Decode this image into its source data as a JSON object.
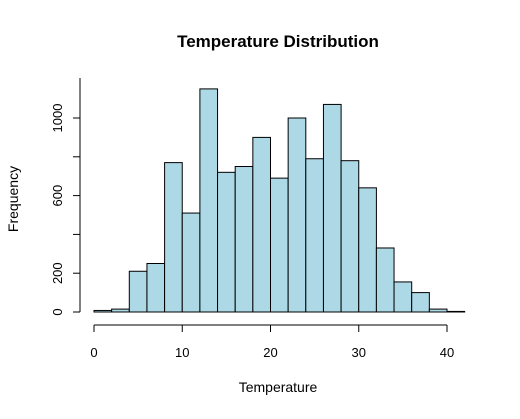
{
  "chart_data": {
    "type": "bar",
    "title": "Temperature Distribution",
    "xlabel": "Temperature",
    "ylabel": "Frequency",
    "bin_width": 2,
    "bins": [
      {
        "x0": 0,
        "x1": 2,
        "count": 8
      },
      {
        "x0": 2,
        "x1": 4,
        "count": 15
      },
      {
        "x0": 4,
        "x1": 6,
        "count": 210
      },
      {
        "x0": 6,
        "x1": 8,
        "count": 250
      },
      {
        "x0": 8,
        "x1": 10,
        "count": 770
      },
      {
        "x0": 10,
        "x1": 12,
        "count": 510
      },
      {
        "x0": 12,
        "x1": 14,
        "count": 1150
      },
      {
        "x0": 14,
        "x1": 16,
        "count": 720
      },
      {
        "x0": 16,
        "x1": 18,
        "count": 750
      },
      {
        "x0": 18,
        "x1": 20,
        "count": 900
      },
      {
        "x0": 20,
        "x1": 22,
        "count": 690
      },
      {
        "x0": 22,
        "x1": 24,
        "count": 1000
      },
      {
        "x0": 24,
        "x1": 26,
        "count": 790
      },
      {
        "x0": 26,
        "x1": 28,
        "count": 1070
      },
      {
        "x0": 28,
        "x1": 30,
        "count": 780
      },
      {
        "x0": 30,
        "x1": 32,
        "count": 640
      },
      {
        "x0": 32,
        "x1": 34,
        "count": 330
      },
      {
        "x0": 34,
        "x1": 36,
        "count": 155
      },
      {
        "x0": 36,
        "x1": 38,
        "count": 100
      },
      {
        "x0": 38,
        "x1": 40,
        "count": 15
      },
      {
        "x0": 40,
        "x1": 42,
        "count": 3
      }
    ],
    "x_ticks": [
      0,
      10,
      20,
      30,
      40
    ],
    "y_ticks": [
      0,
      200,
      400,
      600,
      800,
      1000
    ],
    "y_tick_labels": [
      "0",
      "200",
      "",
      "600",
      "",
      "1000"
    ],
    "xlim": [
      0,
      42
    ],
    "ylim": [
      0,
      1200
    ],
    "grid": false,
    "legend": "none",
    "bar_color": "#add8e6",
    "edge_color": "#000000"
  }
}
